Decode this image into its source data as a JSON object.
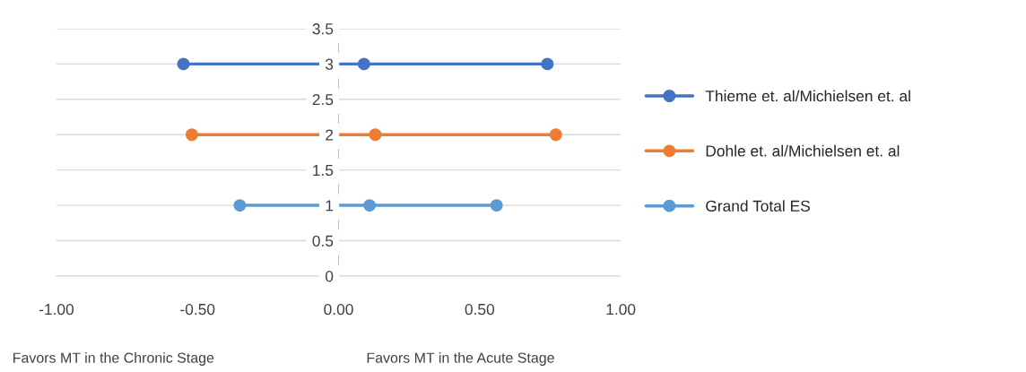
{
  "chart_data": {
    "type": "line",
    "xlim": [
      -1,
      1
    ],
    "xticks": [
      {
        "value": -1,
        "label": "-1.00"
      },
      {
        "value": -0.5,
        "label": "-0.50"
      },
      {
        "value": 0,
        "label": "0.00"
      },
      {
        "value": 0.5,
        "label": "0.50"
      },
      {
        "value": 1,
        "label": "1.00"
      }
    ],
    "ylim": [
      0,
      3.5
    ],
    "yticks": [
      0,
      0.5,
      1,
      1.5,
      2,
      2.5,
      3,
      3.5
    ],
    "grid": "y",
    "legend": "right",
    "marker": "circle",
    "line_style": "solid",
    "series": [
      {
        "name": "Thieme et. al/Michielsen et. al",
        "color": "#4472c4",
        "x": [
          -0.55,
          0.09,
          0.74
        ],
        "values": [
          3,
          3,
          3
        ]
      },
      {
        "name": "Dohle et. al/Michielsen et. al",
        "color": "#ed7d31",
        "x": [
          -0.52,
          0.13,
          0.77
        ],
        "values": [
          2,
          2,
          2
        ]
      },
      {
        "name": "Grand Total ES",
        "color": "#5b9bd5",
        "x": [
          -0.35,
          0.11,
          0.56
        ],
        "values": [
          1,
          1,
          1
        ]
      }
    ],
    "annotations": [
      "Favors MT in the Chronic Stage",
      "Favors MT in the Acute Stage"
    ]
  }
}
